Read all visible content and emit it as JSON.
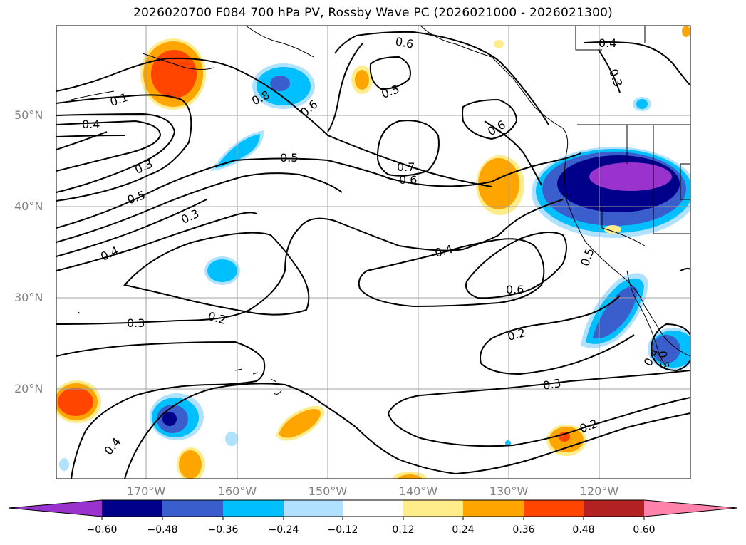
{
  "title": "2026020700 F084 700 hPa PV, Rossby Wave PC (2026021000 - 2026021300)",
  "lat_labels": [
    "50°N",
    "40°N",
    "30°N",
    "20°N"
  ],
  "lon_labels": [
    "170°W",
    "160°W",
    "150°W",
    "140°W",
    "130°W",
    "120°W"
  ],
  "contour_labels": [
    "0.1",
    "0.4",
    "0.3",
    "0.5",
    "0.3",
    "0.4",
    "0.8",
    "0.6",
    "0.5",
    "0.6",
    "0.5",
    "0.7",
    "0.6",
    "0.6",
    "0.4",
    "0.3",
    "0.4",
    "0.6",
    "0.5",
    "0.2",
    "0.3",
    "0.2",
    "0.3",
    "0.2",
    "0.4",
    "0.4",
    "0.5"
  ],
  "colorbar": {
    "ticks": [
      "−0.60",
      "−0.48",
      "−0.36",
      "−0.24",
      "−0.12",
      "0.12",
      "0.24",
      "0.36",
      "0.48",
      "0.60"
    ],
    "colors": [
      "#9a32cd",
      "#00008b",
      "#3a5fcd",
      "#00bfff",
      "#b0e2ff",
      "#ffffff",
      "#ffec8b",
      "#ffa500",
      "#ff4500",
      "#b22222",
      "#ff82ab"
    ]
  },
  "colors": {
    "shading_neg_violet": "#9a32cd",
    "shading_neg_navy": "#00008b",
    "shading_neg_blue": "#3a5fcd",
    "shading_neg_sky": "#00bfff",
    "shading_neg_light": "#b0e2ff",
    "shading_pos_yellow": "#ffec8b",
    "shading_pos_orange": "#ffa500",
    "shading_pos_red": "#ff4500",
    "contour": "#000000",
    "grid": "#a0a0a0"
  }
}
